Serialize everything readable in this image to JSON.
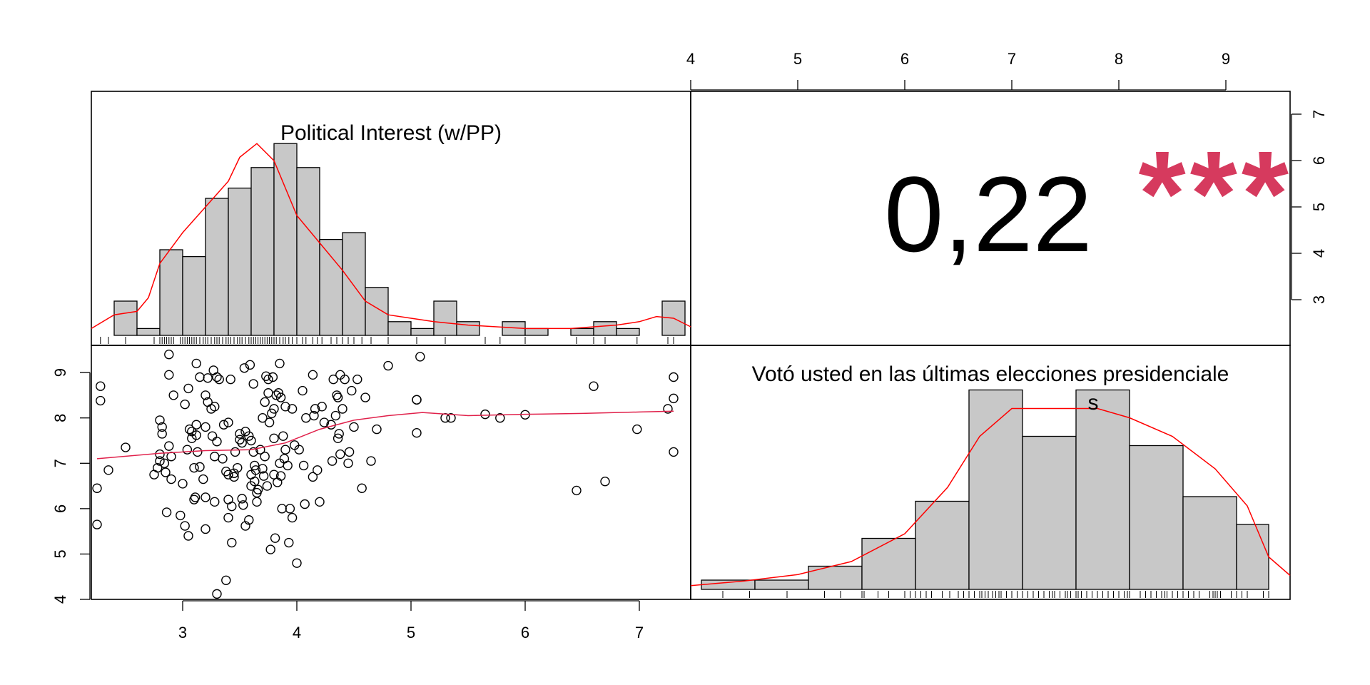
{
  "chart_data": {
    "type": "scatter",
    "layout": "pairs-panel-matrix",
    "variables": [
      {
        "name": "Political Interest (w/PP)",
        "lim": [
          2.2,
          7.45
        ],
        "ticks": [
          3,
          4,
          5,
          6,
          7
        ],
        "histogram": {
          "breaks": [
            2.4,
            2.6,
            2.8,
            3.0,
            3.2,
            3.4,
            3.6,
            3.8,
            4.0,
            4.2,
            4.4,
            4.6,
            4.8,
            5.0,
            5.2,
            5.4,
            5.6,
            5.8,
            6.0,
            6.2,
            6.4,
            6.6,
            6.8,
            7.0,
            7.2
          ],
          "heights": [
            2,
            0.4,
            5,
            4.6,
            8,
            8.6,
            9.8,
            11.2,
            9.8,
            5.6,
            6,
            2.8,
            0.8,
            0.4,
            2,
            0.8,
            0,
            0.8,
            0.4,
            0,
            0.4,
            0.8,
            0.4,
            0,
            2
          ]
        },
        "density": [
          [
            2.2,
            0.4
          ],
          [
            2.4,
            1.2
          ],
          [
            2.6,
            1.4
          ],
          [
            2.7,
            2.2
          ],
          [
            2.8,
            4.2
          ],
          [
            3.0,
            6
          ],
          [
            3.2,
            7.5
          ],
          [
            3.4,
            9
          ],
          [
            3.5,
            10.4
          ],
          [
            3.65,
            11.2
          ],
          [
            3.8,
            10.2
          ],
          [
            4.0,
            7
          ],
          [
            4.2,
            5.4
          ],
          [
            4.4,
            3.8
          ],
          [
            4.6,
            2
          ],
          [
            4.8,
            1.2
          ],
          [
            5.0,
            1
          ],
          [
            5.2,
            0.8
          ],
          [
            5.5,
            0.6
          ],
          [
            6.0,
            0.4
          ],
          [
            6.4,
            0.4
          ],
          [
            6.8,
            0.6
          ],
          [
            7.0,
            0.8
          ],
          [
            7.15,
            1.1
          ],
          [
            7.3,
            1
          ],
          [
            7.45,
            0.5
          ]
        ]
      },
      {
        "name": "Votó usted en las últimas elecciones presidenciales",
        "lim": [
          4.0,
          9.6
        ],
        "ticks": [
          4,
          5,
          6,
          7,
          8,
          9
        ],
        "histogram": {
          "breaks": [
            4.1,
            4.6,
            5.1,
            5.6,
            6.1,
            6.6,
            7.1,
            7.6,
            8.1,
            8.6,
            9.1,
            9.4
          ],
          "heights": [
            1,
            1,
            2.5,
            5.5,
            9.5,
            21.5,
            16.5,
            21.5,
            15.5,
            10,
            7
          ]
        },
        "density": [
          [
            4.0,
            0.4
          ],
          [
            4.5,
            0.9
          ],
          [
            5.0,
            1.6
          ],
          [
            5.5,
            3
          ],
          [
            6.0,
            6
          ],
          [
            6.4,
            11
          ],
          [
            6.7,
            16.5
          ],
          [
            7.0,
            19.5
          ],
          [
            7.4,
            19.5
          ],
          [
            7.8,
            19.5
          ],
          [
            8.1,
            18.5
          ],
          [
            8.5,
            16.5
          ],
          [
            8.9,
            13
          ],
          [
            9.2,
            9
          ],
          [
            9.4,
            3.5
          ],
          [
            9.6,
            1.5
          ]
        ]
      }
    ],
    "correlation": {
      "value": "0,22",
      "stars": "***",
      "star_color": "#d63a5e"
    },
    "scatter_points": [
      [
        2.25,
        5.65
      ],
      [
        2.25,
        6.45
      ],
      [
        2.28,
        8.7
      ],
      [
        2.28,
        8.38
      ],
      [
        2.35,
        6.85
      ],
      [
        2.5,
        7.35
      ],
      [
        2.75,
        6.75
      ],
      [
        2.78,
        6.9
      ],
      [
        2.8,
        7.05
      ],
      [
        2.8,
        7.2
      ],
      [
        2.8,
        7.95
      ],
      [
        2.82,
        7.8
      ],
      [
        2.82,
        7.65
      ],
      [
        2.84,
        7.0
      ],
      [
        2.85,
        6.8
      ],
      [
        2.86,
        5.92
      ],
      [
        2.88,
        9.4
      ],
      [
        2.88,
        8.95
      ],
      [
        2.88,
        7.38
      ],
      [
        2.9,
        7.15
      ],
      [
        2.9,
        6.65
      ],
      [
        2.92,
        8.5
      ],
      [
        2.98,
        5.85
      ],
      [
        3.0,
        6.55
      ],
      [
        3.02,
        5.62
      ],
      [
        3.02,
        8.3
      ],
      [
        3.04,
        7.3
      ],
      [
        3.05,
        5.4
      ],
      [
        3.05,
        8.65
      ],
      [
        3.06,
        7.75
      ],
      [
        3.08,
        7.7
      ],
      [
        3.08,
        7.55
      ],
      [
        3.1,
        6.2
      ],
      [
        3.1,
        6.9
      ],
      [
        3.11,
        6.25
      ],
      [
        3.12,
        7.85
      ],
      [
        3.12,
        7.62
      ],
      [
        3.12,
        9.2
      ],
      [
        3.13,
        7.25
      ],
      [
        3.15,
        6.92
      ],
      [
        3.15,
        8.9
      ],
      [
        3.18,
        6.65
      ],
      [
        3.2,
        7.8
      ],
      [
        3.2,
        8.5
      ],
      [
        3.2,
        5.55
      ],
      [
        3.2,
        6.25
      ],
      [
        3.22,
        8.35
      ],
      [
        3.22,
        8.88
      ],
      [
        3.25,
        8.2
      ],
      [
        3.26,
        7.6
      ],
      [
        3.27,
        9.05
      ],
      [
        3.28,
        6.15
      ],
      [
        3.28,
        8.25
      ],
      [
        3.28,
        7.15
      ],
      [
        3.3,
        4.12
      ],
      [
        3.3,
        7.48
      ],
      [
        3.3,
        8.9
      ],
      [
        3.32,
        8.85
      ],
      [
        3.35,
        7.1
      ],
      [
        3.36,
        7.85
      ],
      [
        3.38,
        4.42
      ],
      [
        3.38,
        6.82
      ],
      [
        3.4,
        6.75
      ],
      [
        3.4,
        5.8
      ],
      [
        3.4,
        6.2
      ],
      [
        3.4,
        7.9
      ],
      [
        3.42,
        8.85
      ],
      [
        3.43,
        6.05
      ],
      [
        3.43,
        5.25
      ],
      [
        3.45,
        6.7
      ],
      [
        3.45,
        6.78
      ],
      [
        3.46,
        7.25
      ],
      [
        3.48,
        6.9
      ],
      [
        3.5,
        7.65
      ],
      [
        3.5,
        7.52
      ],
      [
        3.52,
        7.45
      ],
      [
        3.52,
        6.22
      ],
      [
        3.53,
        6.08
      ],
      [
        3.54,
        9.1
      ],
      [
        3.55,
        7.7
      ],
      [
        3.55,
        5.62
      ],
      [
        3.58,
        5.75
      ],
      [
        3.58,
        7.6
      ],
      [
        3.59,
        9.17
      ],
      [
        3.6,
        6.75
      ],
      [
        3.6,
        6.5
      ],
      [
        3.6,
        7.5
      ],
      [
        3.62,
        8.75
      ],
      [
        3.62,
        7.25
      ],
      [
        3.63,
        6.95
      ],
      [
        3.63,
        6.6
      ],
      [
        3.64,
        6.85
      ],
      [
        3.65,
        6.35
      ],
      [
        3.65,
        6.15
      ],
      [
        3.66,
        6.42
      ],
      [
        3.68,
        7.3
      ],
      [
        3.7,
        6.88
      ],
      [
        3.7,
        8.0
      ],
      [
        3.71,
        6.72
      ],
      [
        3.72,
        7.15
      ],
      [
        3.72,
        8.35
      ],
      [
        3.73,
        8.92
      ],
      [
        3.74,
        6.5
      ],
      [
        3.75,
        8.55
      ],
      [
        3.75,
        8.85
      ],
      [
        3.76,
        7.9
      ],
      [
        3.77,
        5.1
      ],
      [
        3.78,
        8.1
      ],
      [
        3.79,
        8.9
      ],
      [
        3.8,
        6.75
      ],
      [
        3.8,
        8.2
      ],
      [
        3.8,
        7.55
      ],
      [
        3.81,
        5.35
      ],
      [
        3.82,
        8.5
      ],
      [
        3.83,
        6.58
      ],
      [
        3.84,
        8.55
      ],
      [
        3.85,
        7.0
      ],
      [
        3.85,
        9.2
      ],
      [
        3.86,
        6.72
      ],
      [
        3.86,
        8.45
      ],
      [
        3.87,
        6.0
      ],
      [
        3.88,
        7.6
      ],
      [
        3.89,
        7.1
      ],
      [
        3.9,
        8.25
      ],
      [
        3.9,
        7.3
      ],
      [
        3.92,
        6.95
      ],
      [
        3.93,
        5.25
      ],
      [
        3.94,
        6.0
      ],
      [
        3.96,
        8.2
      ],
      [
        3.96,
        5.8
      ],
      [
        3.98,
        7.4
      ],
      [
        4.0,
        4.8
      ],
      [
        4.02,
        7.3
      ],
      [
        4.05,
        8.6
      ],
      [
        4.06,
        6.95
      ],
      [
        4.07,
        6.1
      ],
      [
        4.08,
        8.0
      ],
      [
        4.14,
        8.95
      ],
      [
        4.14,
        6.7
      ],
      [
        4.15,
        8.05
      ],
      [
        4.16,
        8.2
      ],
      [
        4.18,
        6.85
      ],
      [
        4.2,
        6.15
      ],
      [
        4.22,
        8.25
      ],
      [
        4.24,
        7.9
      ],
      [
        4.3,
        7.85
      ],
      [
        4.31,
        7.05
      ],
      [
        4.32,
        8.85
      ],
      [
        4.34,
        8.05
      ],
      [
        4.35,
        8.5
      ],
      [
        4.36,
        8.45
      ],
      [
        4.36,
        7.55
      ],
      [
        4.37,
        7.65
      ],
      [
        4.38,
        7.2
      ],
      [
        4.38,
        8.95
      ],
      [
        4.4,
        8.2
      ],
      [
        4.42,
        8.85
      ],
      [
        4.45,
        7.0
      ],
      [
        4.46,
        7.25
      ],
      [
        4.48,
        8.6
      ],
      [
        4.5,
        7.8
      ],
      [
        4.53,
        8.85
      ],
      [
        4.57,
        6.45
      ],
      [
        4.6,
        8.45
      ],
      [
        4.65,
        7.05
      ],
      [
        4.7,
        7.75
      ],
      [
        4.8,
        9.15
      ],
      [
        5.05,
        8.4
      ],
      [
        5.05,
        7.67
      ],
      [
        5.05,
        8.4
      ],
      [
        5.08,
        9.35
      ],
      [
        5.3,
        8.0
      ],
      [
        5.35,
        8.0
      ],
      [
        5.65,
        8.08
      ],
      [
        5.78,
        8.0
      ],
      [
        6.0,
        8.07
      ],
      [
        6.45,
        6.4
      ],
      [
        6.6,
        8.7
      ],
      [
        6.7,
        6.6
      ],
      [
        6.98,
        7.75
      ],
      [
        7.25,
        8.2
      ],
      [
        7.3,
        8.43
      ],
      [
        7.3,
        7.25
      ],
      [
        7.3,
        8.9
      ]
    ],
    "loess": [
      [
        2.25,
        7.1
      ],
      [
        2.8,
        7.22
      ],
      [
        3.2,
        7.28
      ],
      [
        3.6,
        7.3
      ],
      [
        3.9,
        7.45
      ],
      [
        4.2,
        7.75
      ],
      [
        4.5,
        7.95
      ],
      [
        4.8,
        8.05
      ],
      [
        5.1,
        8.12
      ],
      [
        5.5,
        8.05
      ],
      [
        6.0,
        8.08
      ],
      [
        6.5,
        8.1
      ],
      [
        7.0,
        8.13
      ],
      [
        7.3,
        8.15
      ]
    ],
    "rug_x": [
      2.28,
      2.35,
      2.5,
      2.75,
      2.8,
      2.82,
      2.84,
      2.86,
      2.88,
      2.9,
      2.92,
      2.98,
      3.0,
      3.02,
      3.04,
      3.06,
      3.08,
      3.1,
      3.12,
      3.15,
      3.18,
      3.2,
      3.22,
      3.25,
      3.28,
      3.3,
      3.32,
      3.35,
      3.38,
      3.4,
      3.42,
      3.45,
      3.48,
      3.5,
      3.52,
      3.55,
      3.58,
      3.6,
      3.62,
      3.64,
      3.66,
      3.68,
      3.7,
      3.72,
      3.74,
      3.76,
      3.78,
      3.8,
      3.82,
      3.85,
      3.88,
      3.9,
      3.93,
      3.96,
      4.0,
      4.05,
      4.08,
      4.14,
      4.18,
      4.22,
      4.3,
      4.35,
      4.4,
      4.45,
      4.5,
      4.57,
      4.65,
      4.8,
      5.05,
      5.3,
      5.65,
      5.78,
      6.0,
      6.45,
      6.6,
      6.7,
      6.98,
      7.25,
      7.3
    ],
    "rug_y": [
      4.3,
      4.55,
      4.9,
      5.25,
      5.4,
      5.6,
      5.62,
      5.75,
      5.85,
      6.0,
      6.05,
      6.1,
      6.15,
      6.2,
      6.25,
      6.35,
      6.42,
      6.5,
      6.55,
      6.6,
      6.65,
      6.7,
      6.72,
      6.75,
      6.78,
      6.82,
      6.85,
      6.88,
      6.9,
      6.95,
      7.0,
      7.05,
      7.1,
      7.15,
      7.2,
      7.25,
      7.3,
      7.35,
      7.38,
      7.4,
      7.45,
      7.5,
      7.52,
      7.55,
      7.6,
      7.62,
      7.65,
      7.7,
      7.75,
      7.8,
      7.85,
      7.9,
      7.95,
      8.0,
      8.05,
      8.08,
      8.1,
      8.2,
      8.25,
      8.3,
      8.35,
      8.4,
      8.43,
      8.45,
      8.5,
      8.55,
      8.6,
      8.65,
      8.7,
      8.75,
      8.85,
      8.88,
      8.9,
      8.92,
      8.95,
      9.05,
      9.1,
      9.15,
      9.2,
      9.35,
      9.4
    ]
  }
}
